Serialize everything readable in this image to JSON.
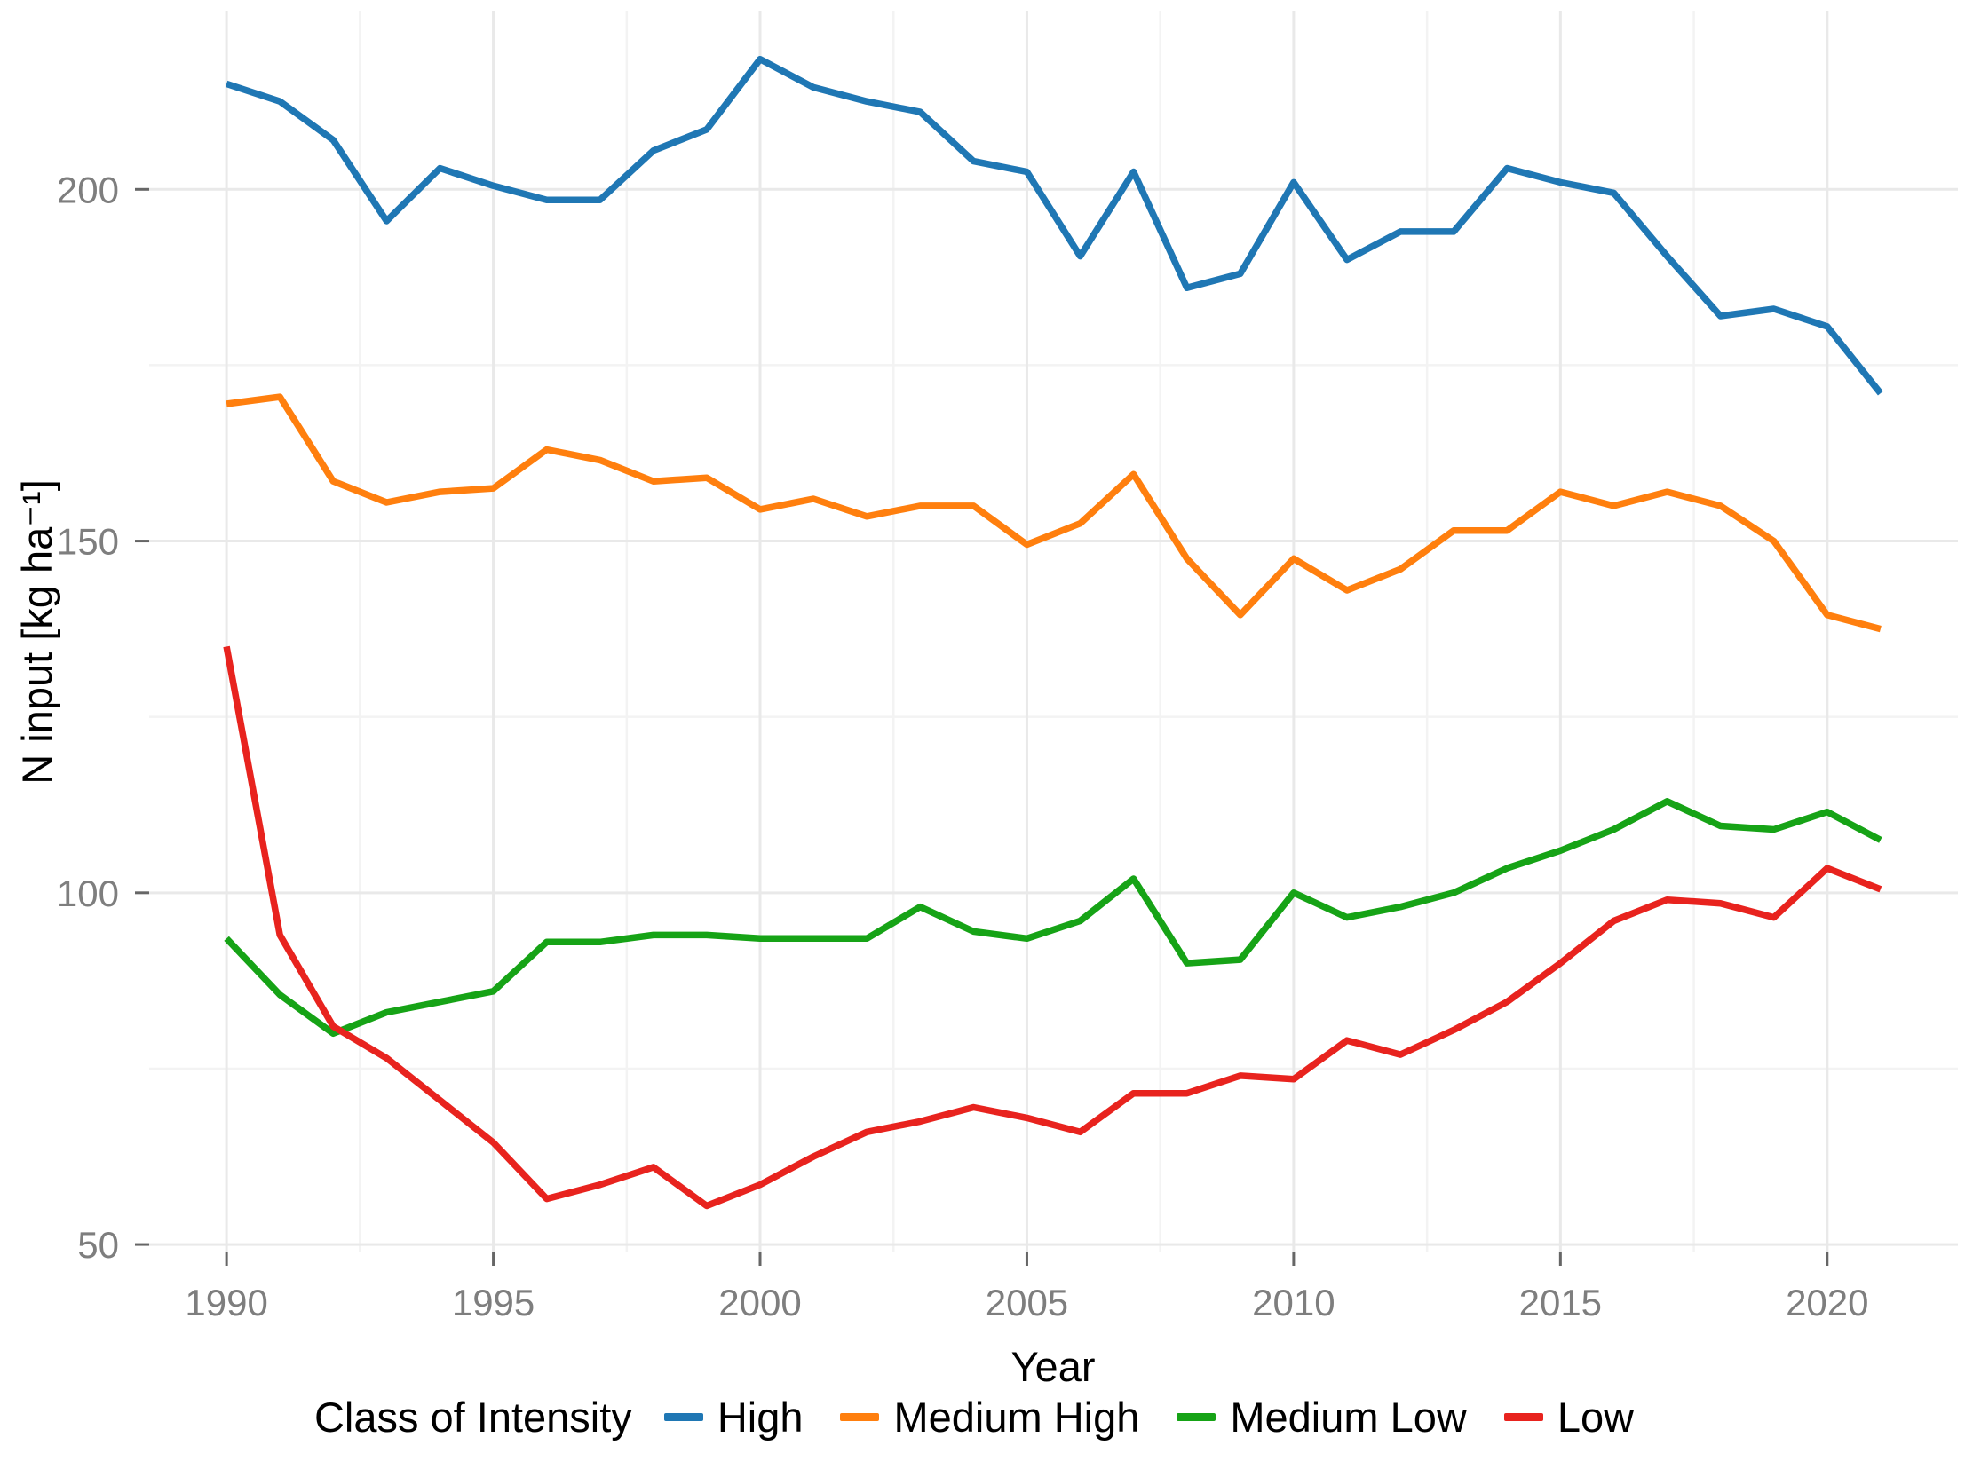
{
  "chart_data": {
    "type": "line",
    "title": "",
    "xlabel": "Year",
    "ylabel": "N input [kg ha⁻¹]",
    "legend_title": "Class of Intensity",
    "legend_position": "bottom",
    "grid": "on",
    "xlim": [
      1988.55,
      2022.45
    ],
    "ylim": [
      49.0,
      225.4
    ],
    "x_ticks": [
      1990,
      1995,
      2000,
      2005,
      2010,
      2015,
      2020
    ],
    "x_minor_ticks": [
      1992.5,
      1997.5,
      2002.5,
      2007.5,
      2012.5,
      2017.5
    ],
    "y_ticks": [
      50,
      100,
      150,
      200
    ],
    "y_minor_ticks": [
      75,
      125,
      175
    ],
    "x": [
      1990,
      1991,
      1992,
      1993,
      1994,
      1995,
      1996,
      1997,
      1998,
      1999,
      2000,
      2001,
      2002,
      2003,
      2004,
      2005,
      2006,
      2007,
      2008,
      2009,
      2010,
      2011,
      2012,
      2013,
      2014,
      2015,
      2016,
      2017,
      2018,
      2019,
      2020,
      2021
    ],
    "series": [
      {
        "name": "High",
        "color": "#1F77B4",
        "values": [
          215,
          212.5,
          207,
          195.5,
          203,
          200.5,
          198.5,
          198.5,
          205.5,
          208.5,
          218.5,
          214.5,
          212.5,
          211,
          204,
          202.5,
          190.5,
          202.5,
          186,
          188,
          201,
          190,
          194,
          194,
          203,
          201,
          199.5,
          190.5,
          182,
          183,
          180.5,
          171
        ]
      },
      {
        "name": "Medium High",
        "color": "#FF7F0E",
        "values": [
          169.5,
          170.5,
          158.5,
          155.5,
          157,
          157.5,
          163,
          161.5,
          158.5,
          159,
          154.5,
          156,
          153.5,
          155,
          155,
          149.5,
          152.5,
          159.5,
          147.5,
          139.5,
          147.5,
          143,
          146,
          151.5,
          151.5,
          157,
          155,
          157,
          155,
          150,
          139.5,
          137.5
        ]
      },
      {
        "name": "Medium Low",
        "color": "#16A316",
        "values": [
          93.5,
          85.5,
          80,
          83,
          84.5,
          86,
          93,
          93,
          94,
          94,
          93.5,
          93.5,
          93.5,
          98,
          94.5,
          93.5,
          96,
          102,
          90,
          90.5,
          100,
          96.5,
          98,
          100,
          103.5,
          106,
          109,
          113,
          109.5,
          109,
          111.5,
          107.5
        ]
      },
      {
        "name": "Low",
        "color": "#E8231E",
        "values": [
          135,
          94,
          81,
          76.5,
          70.5,
          64.5,
          56.5,
          58.5,
          61,
          55.5,
          58.5,
          62.5,
          66,
          67.5,
          69.5,
          68,
          66,
          71.5,
          71.5,
          74,
          73.5,
          79,
          77,
          80.5,
          84.5,
          90,
          96,
          99,
          98.5,
          96.5,
          103.5,
          100.5
        ]
      }
    ]
  }
}
